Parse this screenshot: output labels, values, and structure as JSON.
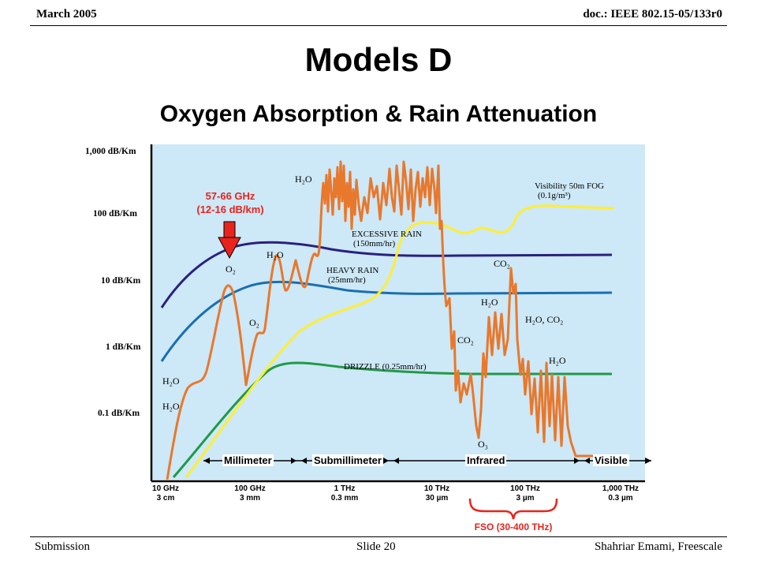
{
  "header": {
    "date": "March 2005",
    "doc_id": "doc.: IEEE 802.15-05/133r0"
  },
  "slide": {
    "title": "Models D",
    "subtitle": "Oxygen Absorption & Rain Attenuation"
  },
  "footer": {
    "left": "Submission",
    "center": "Slide 20",
    "right": "Shahriar Emami, Freescale"
  },
  "callouts": {
    "oxygen_line1": "57-66 GHz",
    "oxygen_line2": "(12-16 dB/km)",
    "fso": "FSO (30-400 THz)"
  },
  "colors": {
    "plot_bg": "#cde8f6",
    "callout_red": "#e8231c",
    "excessive_rain": "#2a2080",
    "heavy_rain": "#1a6fb0",
    "drizzle": "#1f9a4a",
    "fog": "#ffee33",
    "absorption": "#e8782c"
  },
  "chart_data": {
    "type": "line",
    "yscale": "log",
    "y_ticks": [
      "1,000 dB/Km",
      "100 dB/Km",
      "10 dB/Km",
      "1 dB/Km",
      "0.1 dB/Km"
    ],
    "x_ticks": [
      {
        "freq": "10 GHz",
        "wave": "3 cm"
      },
      {
        "freq": "100 GHz",
        "wave": "3 mm"
      },
      {
        "freq": "1 THz",
        "wave": "0.3 mm"
      },
      {
        "freq": "10 THz",
        "wave": "30 µm"
      },
      {
        "freq": "100 THz",
        "wave": "3 µm"
      },
      {
        "freq": "1,000 THz",
        "wave": "0.3 µm"
      }
    ],
    "bands": [
      "Millimeter",
      "Submillimeter",
      "Infrared",
      "Visible"
    ],
    "series_labels": {
      "fog_line1": "Visibility 50m FOG",
      "fog_line2": "(0.1g/m³)",
      "excessive_line1": "EXCESSIVE RAIN",
      "excessive_line2": "(150mm/hr)",
      "heavy_line1": "HEAVY RAIN",
      "heavy_line2": "(25mm/hr)",
      "drizzle": "DRIZZLE (0.25mm/hr)"
    },
    "absorption_labels": {
      "h2o_top": "H₂O",
      "h2o_mid": "H₂O",
      "o2_a": "O₂",
      "o2_b": "O₂",
      "h2o_left_1": "H₂O",
      "h2o_left_2": "H₂O",
      "co2_a": "CO₂",
      "co2_b": "CO₂",
      "h2o_ir": "H₂O",
      "h2o_co2": "H₂O, CO₂",
      "h2o_ir2": "H₂O",
      "o3": "O₃"
    },
    "series": [
      {
        "name": "EXCESSIVE RAIN (150mm/hr)",
        "x_ghz": [
          10,
          30,
          60,
          100,
          300,
          1000,
          3000,
          10000,
          100000,
          1000000
        ],
        "y_db_per_km": [
          8,
          30,
          45,
          45,
          38,
          30,
          25,
          25,
          25,
          25
        ]
      },
      {
        "name": "HEAVY RAIN (25mm/hr)",
        "x_ghz": [
          10,
          30,
          60,
          100,
          300,
          1000,
          3000,
          10000,
          100000,
          1000000
        ],
        "y_db_per_km": [
          1.5,
          6,
          10,
          11,
          9,
          7,
          6,
          6,
          6,
          6
        ]
      },
      {
        "name": "DRIZZLE (0.25mm/hr)",
        "x_ghz": [
          10,
          30,
          60,
          100,
          300,
          1000,
          10000,
          100000,
          1000000
        ],
        "y_db_per_km": [
          0.02,
          0.1,
          0.35,
          0.45,
          0.4,
          0.35,
          0.33,
          0.33,
          0.33
        ]
      },
      {
        "name": "Visibility 50m FOG (0.1g/m³)",
        "x_ghz": [
          10,
          30,
          100,
          300,
          1000,
          3000,
          6000,
          10000,
          30000,
          100000,
          300000,
          1000000
        ],
        "y_db_per_km": [
          0.003,
          0.03,
          0.3,
          2,
          5,
          10,
          40,
          90,
          70,
          100,
          150,
          150
        ]
      }
    ]
  }
}
